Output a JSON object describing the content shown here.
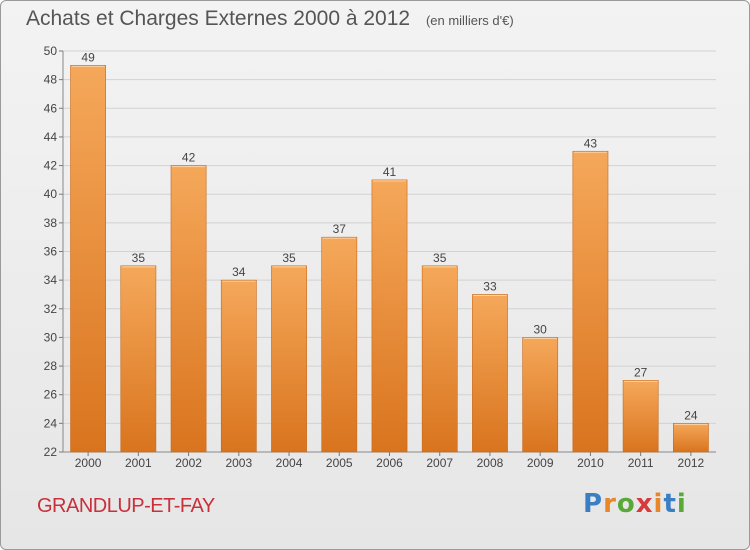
{
  "header": {
    "title": "Achats et Charges Externes 2000 à 2012",
    "unit": "(en milliers d'€)"
  },
  "footer": {
    "town": "GRANDLUP-ET-FAY",
    "logo_text": "Proxiti",
    "logo_colors": [
      "#3a7fc4",
      "#e8862a",
      "#59a83a",
      "#d83a3a",
      "#e8862a",
      "#3a7fc4",
      "#59a83a"
    ]
  },
  "chart_data": {
    "type": "bar",
    "title": "Achats et Charges Externes 2000 à 2012",
    "subtitle": "(en milliers d'€)",
    "xlabel": "",
    "ylabel": "",
    "categories": [
      "2000",
      "2001",
      "2002",
      "2003",
      "2004",
      "2005",
      "2006",
      "2007",
      "2008",
      "2009",
      "2010",
      "2011",
      "2012"
    ],
    "values": [
      49,
      35,
      42,
      34,
      35,
      37,
      41,
      35,
      33,
      30,
      43,
      27,
      24
    ],
    "ylim": [
      22,
      50
    ],
    "yticks": [
      22,
      24,
      26,
      28,
      30,
      32,
      34,
      36,
      38,
      40,
      42,
      44,
      46,
      48,
      50
    ],
    "grid": true,
    "bar_color_light": "#f5a85a",
    "bar_color_dark": "#d9741e"
  }
}
